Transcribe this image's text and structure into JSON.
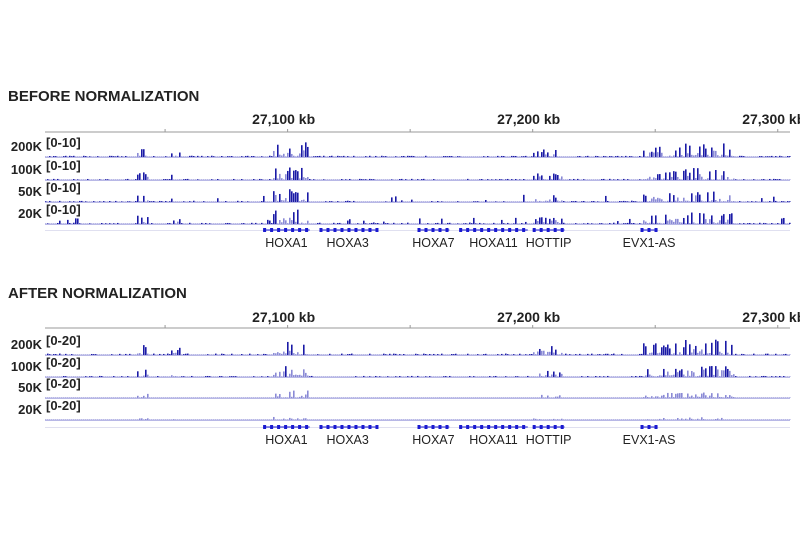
{
  "chart_data": [
    {
      "type": "genome-browser-tracks",
      "title": "BEFORE NORMALIZATION",
      "x_axis": {
        "unit": "kb",
        "range_kb": [
          27001,
          27305
        ],
        "ticks": [
          {
            "kb": 27100,
            "label": "27,100 kb"
          },
          {
            "kb": 27200,
            "label": "27,200 kb"
          },
          {
            "kb": 27300,
            "label": "27,300 kb"
          }
        ],
        "minor_ticks_kb": [
          27050,
          27150,
          27250
        ]
      },
      "tracks": [
        {
          "name": "200K",
          "range": "[0-10]",
          "gain": 1.0
        },
        {
          "name": "100K",
          "range": "[0-10]",
          "gain": 0.9
        },
        {
          "name": "50K",
          "range": "[0-10]",
          "gain": 0.85
        },
        {
          "name": "20K",
          "range": "[0-10]",
          "gain": 0.95
        }
      ],
      "genes": [
        {
          "label": "HOXA1",
          "start_kb": 27090,
          "end_kb": 27109
        },
        {
          "label": "HOXA3",
          "start_kb": 27113,
          "end_kb": 27136
        },
        {
          "label": "HOXA7",
          "start_kb": 27153,
          "end_kb": 27166
        },
        {
          "label": "HOXA11",
          "start_kb": 27170,
          "end_kb": 27198
        },
        {
          "label": "HOTTIP",
          "start_kb": 27200,
          "end_kb": 27213
        },
        {
          "label": "EVX1-AS",
          "start_kb": 27244,
          "end_kb": 27251
        }
      ]
    },
    {
      "type": "genome-browser-tracks",
      "title": "AFTER NORMALIZATION",
      "x_axis": {
        "unit": "kb",
        "range_kb": [
          27001,
          27305
        ],
        "ticks": [
          {
            "kb": 27100,
            "label": "27,100 kb"
          },
          {
            "kb": 27200,
            "label": "27,200 kb"
          },
          {
            "kb": 27300,
            "label": "27,300 kb"
          }
        ],
        "minor_ticks_kb": [
          27050,
          27150,
          27250
        ]
      },
      "tracks": [
        {
          "name": "200K",
          "range": "[0-20]",
          "gain": 1.0
        },
        {
          "name": "100K",
          "range": "[0-20]",
          "gain": 0.75
        },
        {
          "name": "50K",
          "range": "[0-20]",
          "gain": 0.45
        },
        {
          "name": "20K",
          "range": "[0-20]",
          "gain": 0.18
        }
      ],
      "genes": [
        {
          "label": "HOXA1",
          "start_kb": 27090,
          "end_kb": 27109
        },
        {
          "label": "HOXA3",
          "start_kb": 27113,
          "end_kb": 27136
        },
        {
          "label": "HOXA7",
          "start_kb": 27153,
          "end_kb": 27166
        },
        {
          "label": "HOXA11",
          "start_kb": 27170,
          "end_kb": 27198
        },
        {
          "label": "HOTTIP",
          "start_kb": 27200,
          "end_kb": 27213
        },
        {
          "label": "EVX1-AS",
          "start_kb": 27244,
          "end_kb": 27251
        }
      ]
    }
  ],
  "signal_enriched_regions_kb": [
    {
      "start": 27038,
      "end": 27043,
      "level": 0.55
    },
    {
      "start": 27052,
      "end": 27056,
      "level": 0.4
    },
    {
      "start": 27094,
      "end": 27108,
      "level": 0.95
    },
    {
      "start": 27200,
      "end": 27212,
      "level": 0.5
    },
    {
      "start": 27245,
      "end": 27262,
      "level": 0.65
    },
    {
      "start": 27262,
      "end": 27282,
      "level": 0.85
    }
  ],
  "colors": {
    "signal": "#1a1aa6",
    "signal_light": "#8a8ad6",
    "axis": "#999999",
    "gene": "#1a1ad0"
  }
}
